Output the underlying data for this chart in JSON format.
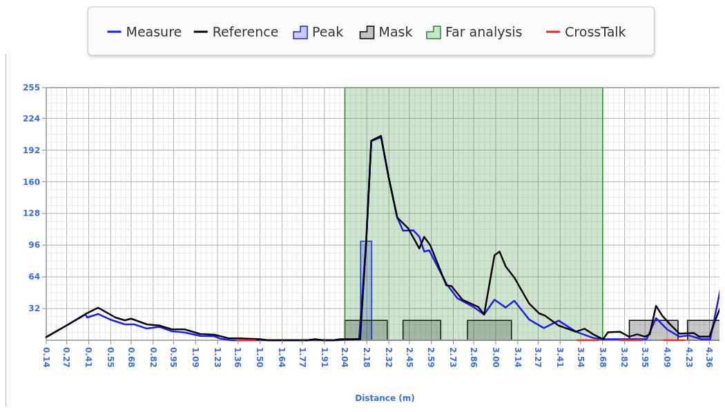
{
  "chart_data": {
    "type": "line",
    "xlabel": "Distance (m)",
    "xlim": [
      0.14,
      4.45
    ],
    "ylim": [
      0,
      255
    ],
    "xticks": [
      0.14,
      0.27,
      0.41,
      0.55,
      0.68,
      0.82,
      0.95,
      1.09,
      1.23,
      1.36,
      {
        "value": 1.5,
        "label": "1.50"
      },
      1.64,
      1.77,
      1.91,
      2.04,
      2.18,
      2.32,
      2.45,
      2.59,
      2.73,
      2.86,
      {
        "value": 3.0,
        "label": "3.00"
      },
      3.14,
      3.27,
      3.41,
      3.54,
      3.68,
      3.82,
      3.95,
      4.09,
      4.23,
      4.36
    ],
    "yticks": [
      32,
      64,
      96,
      128,
      160,
      192,
      224,
      255
    ],
    "grid": true,
    "legend": "top",
    "series": [
      {
        "name": "Measure",
        "color": "#1a1aff",
        "x": [
          0.14,
          0.27,
          0.39,
          0.4,
          0.47,
          0.55,
          0.64,
          0.7,
          0.78,
          0.86,
          0.94,
          1.02,
          1.12,
          1.21,
          1.25,
          1.32,
          1.6,
          2.0,
          2.13,
          2.176,
          2.208,
          2.27,
          2.318,
          2.373,
          2.41,
          2.475,
          2.514,
          2.545,
          2.577,
          2.686,
          2.757,
          2.86,
          2.926,
          2.992,
          3.063,
          3.118,
          3.212,
          3.306,
          3.4,
          3.51,
          3.62,
          3.683,
          3.714,
          3.96,
          4.02,
          4.09,
          4.17,
          4.23,
          4.31,
          4.365,
          4.43,
          4.44
        ],
        "values": [
          3,
          15,
          26,
          23,
          26.5,
          20.7,
          16,
          16,
          11.8,
          13.6,
          9,
          7.9,
          4.4,
          4,
          1.5,
          0,
          0,
          0,
          1,
          100,
          201,
          205,
          165,
          124,
          110.6,
          111,
          104.4,
          89.5,
          90.7,
          57,
          42.2,
          33.5,
          26,
          40.9,
          33,
          39.9,
          21,
          12.3,
          19.8,
          8.6,
          2.3,
          1,
          1,
          1,
          22.3,
          11,
          3.6,
          4.8,
          1,
          1,
          52,
          48
        ]
      },
      {
        "name": "Reference",
        "color": "#000000",
        "x": [
          0.14,
          0.27,
          0.39,
          0.47,
          0.58,
          0.64,
          0.68,
          0.78,
          0.86,
          0.94,
          1.02,
          1.12,
          1.21,
          1.3,
          1.37,
          1.5,
          1.55,
          1.8,
          1.85,
          1.9,
          1.97,
          2.01,
          2.04,
          2.137,
          2.176,
          2.208,
          2.27,
          2.318,
          2.373,
          2.443,
          2.514,
          2.545,
          2.584,
          2.686,
          2.718,
          2.788,
          2.89,
          2.926,
          2.992,
          3.024,
          3.063,
          3.118,
          3.212,
          3.275,
          3.314,
          3.4,
          3.51,
          3.565,
          3.62,
          3.683,
          3.714,
          3.79,
          3.848,
          3.9,
          3.95,
          3.98,
          4.02,
          4.06,
          4.11,
          4.17,
          4.26,
          4.295,
          4.36,
          4.39,
          4.43,
          4.44
        ],
        "values": [
          3.3,
          15,
          26.5,
          32.8,
          23,
          20,
          21.8,
          16,
          14.8,
          11,
          11,
          6.3,
          5.6,
          2,
          2,
          1,
          0,
          0,
          1,
          0,
          0,
          1,
          1,
          1,
          100.6,
          201.4,
          206.4,
          165,
          124,
          113,
          92.6,
          104.4,
          95.7,
          55.3,
          54.7,
          40.9,
          33.5,
          26,
          85.7,
          89.5,
          74.5,
          63.3,
          37.2,
          27.2,
          24.8,
          14.8,
          8.6,
          11.6,
          6,
          1,
          8,
          8.6,
          3.6,
          6,
          3.6,
          6,
          34.7,
          24.7,
          16,
          6.6,
          7.3,
          3.6,
          3.6,
          17.3,
          33.5,
          32
        ]
      },
      {
        "name": "Peak",
        "type": "area",
        "color": "#2020ff",
        "x": [
          2.14,
          2.14,
          2.21,
          2.21
        ],
        "values": [
          0,
          100,
          100,
          0
        ]
      },
      {
        "name": "Mask",
        "type": "area",
        "color": "#000000",
        "x": [
          2.04,
          2.04,
          2.31,
          2.31,
          2.41,
          2.41,
          2.65,
          2.65,
          2.82,
          2.82,
          3.1,
          3.1,
          3.85,
          3.85,
          4.16,
          4.16,
          4.22,
          4.22,
          4.45
        ],
        "values": [
          0,
          20,
          20,
          0,
          0,
          20,
          20,
          0,
          0,
          20,
          20,
          0,
          0,
          20,
          20,
          0,
          0,
          20,
          20
        ]
      },
      {
        "name": "Far analysis",
        "type": "area",
        "color": "#228b22",
        "x": [
          2.04,
          2.04,
          3.68,
          3.68
        ],
        "values": [
          0,
          255,
          255,
          0
        ]
      },
      {
        "name": "CrossTalk",
        "color": "#ff2020",
        "x": [
          1.35,
          1.47,
          1.5,
          3.52,
          3.65,
          3.7,
          3.79,
          3.93,
          4.0,
          4.07,
          4.2
        ],
        "values": [
          0,
          0,
          null,
          0,
          0,
          null,
          0,
          0,
          null,
          0,
          0
        ]
      }
    ]
  }
}
